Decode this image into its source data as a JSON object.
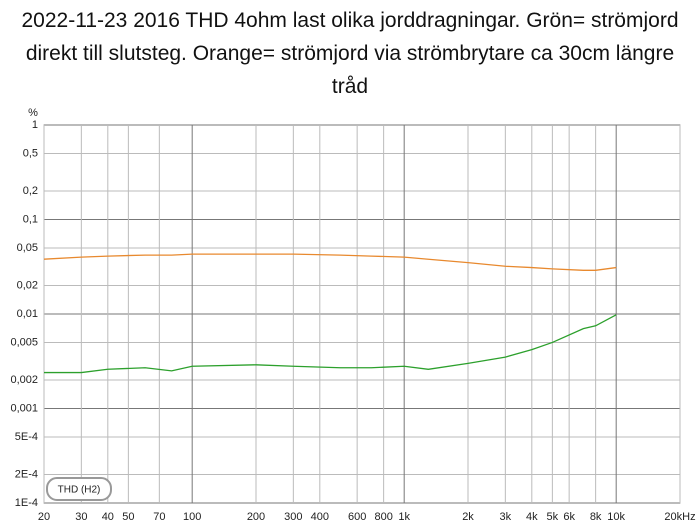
{
  "chart_data": {
    "type": "line",
    "title": "2022-11-23 2016 THD 4ohm last olika jorddragningar. Grön= strömjord direkt till slutsteg. Orange= strömjord via strömbrytare ca 30cm längre tråd",
    "y_label": "%",
    "legend": "THD (H2)",
    "x": [
      20,
      30,
      40,
      60,
      80,
      100,
      200,
      300,
      500,
      700,
      1000,
      1300,
      2000,
      3000,
      4000,
      5000,
      7000,
      8000,
      10000
    ],
    "series": [
      {
        "color": "#e8892e",
        "values": [
          0.038,
          0.04,
          0.041,
          0.042,
          0.042,
          0.043,
          0.043,
          0.043,
          0.042,
          0.041,
          0.04,
          0.038,
          0.035,
          0.032,
          0.031,
          0.03,
          0.029,
          0.029,
          0.031
        ]
      },
      {
        "color": "#2ca02c",
        "values": [
          0.0024,
          0.0024,
          0.0026,
          0.0027,
          0.0025,
          0.0028,
          0.0029,
          0.0028,
          0.0027,
          0.0027,
          0.0028,
          0.0026,
          0.003,
          0.0035,
          0.0042,
          0.005,
          0.007,
          0.0075,
          0.0098
        ]
      }
    ],
    "xlim": [
      20,
      20000
    ],
    "ylim": [
      0.0001,
      1
    ],
    "log_x": true,
    "log_y": true,
    "grid": true,
    "xticks": [
      20,
      30,
      40,
      50,
      70,
      100,
      200,
      300,
      400,
      600,
      800,
      {
        "value": 1000,
        "label": "1k"
      },
      {
        "value": 2000,
        "label": "2k"
      },
      {
        "value": 3000,
        "label": "3k"
      },
      {
        "value": 4000,
        "label": "4k"
      },
      {
        "value": 5000,
        "label": "5k"
      },
      {
        "value": 6000,
        "label": "6k"
      },
      {
        "value": 8000,
        "label": "8k"
      },
      {
        "value": 10000,
        "label": "10k"
      },
      {
        "value": 20000,
        "label": "20kHz"
      }
    ],
    "yticks": [
      1,
      {
        "value": 0.5,
        "label": "0,5"
      },
      {
        "value": 0.2,
        "label": "0,2"
      },
      {
        "value": 0.1,
        "label": "0,1"
      },
      {
        "value": 0.05,
        "label": "0,05"
      },
      {
        "value": 0.02,
        "label": "0,02"
      },
      {
        "value": 0.01,
        "label": "0,01"
      },
      {
        "value": 0.005,
        "label": "0,005"
      },
      {
        "value": 0.002,
        "label": "0,002"
      },
      {
        "value": 0.001,
        "label": "0,001"
      },
      {
        "value": 0.0005,
        "label": "5E-4"
      },
      {
        "value": 0.0002,
        "label": "2E-4"
      },
      {
        "value": 0.0001,
        "label": "1E-4"
      }
    ]
  }
}
